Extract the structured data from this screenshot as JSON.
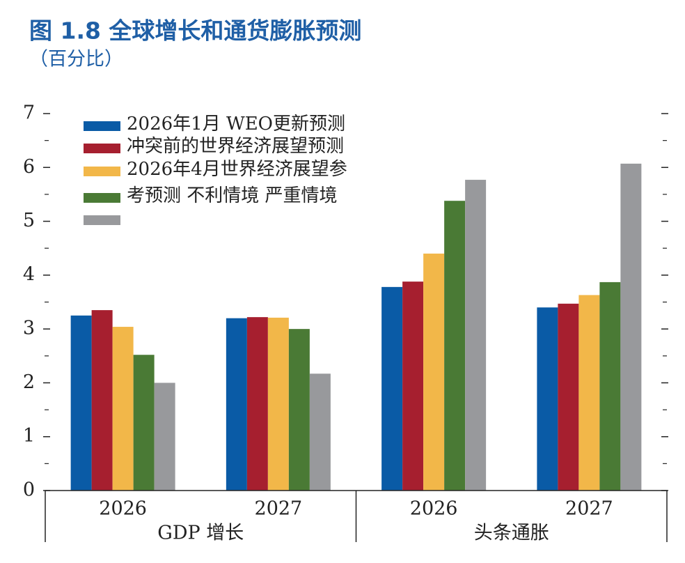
{
  "chart_data": {
    "type": "bar",
    "title": "图 1.8 全球增长和通货膨胀预测",
    "subtitle": "（百分比）",
    "categories": [
      "2026",
      "2027",
      "2026",
      "2027"
    ],
    "groups": [
      "GDP 增长",
      "头条通胀"
    ],
    "series": [
      {
        "name": "2026年1月 WEO更新预测",
        "color": "#0a5ba6",
        "values": [
          3.25,
          3.2,
          3.78,
          3.4
        ]
      },
      {
        "name": "冲突前的世界经济展望预测",
        "color": "#a61f2f",
        "values": [
          3.35,
          3.22,
          3.88,
          3.47
        ]
      },
      {
        "name": "2026年4月世界经济展望参",
        "color": "#f2b749",
        "values": [
          3.04,
          3.21,
          4.4,
          3.63
        ]
      },
      {
        "name": "考预测 不利情境 严重情境",
        "color": "#4a7a35",
        "values": [
          2.52,
          3.0,
          5.38,
          3.87
        ]
      },
      {
        "name": null,
        "color": "#98999c",
        "values": [
          2.0,
          2.17,
          5.77,
          6.07
        ]
      }
    ],
    "ylim": [
      0,
      7
    ],
    "yticks": [
      0,
      1,
      2,
      3,
      4,
      5,
      6,
      7
    ],
    "minor_yticks": [
      0.5,
      1.5,
      2.5,
      3.5,
      4.5,
      5.5,
      6.5
    ]
  }
}
